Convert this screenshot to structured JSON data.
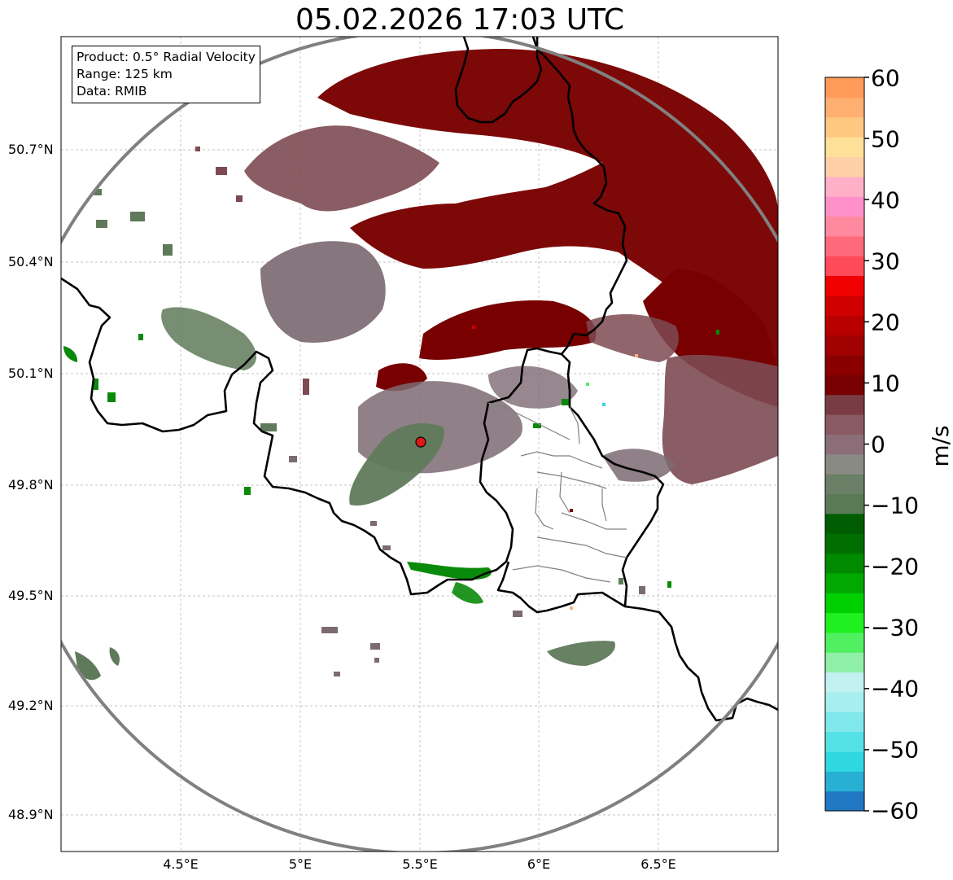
{
  "title": "05.02.2026 17:03 UTC",
  "info": {
    "product": "Product: 0.5° Radial Velocity",
    "range": "Range: 125 km",
    "data": "Data: RMIB"
  },
  "axes": {
    "y_ticks": [
      "50.7°N",
      "50.4°N",
      "50.1°N",
      "49.8°N",
      "49.5°N",
      "49.2°N",
      "48.9°N"
    ],
    "x_ticks": [
      "4.5°E",
      "5°E",
      "5.5°E",
      "6°E",
      "6.5°E"
    ]
  },
  "colorbar": {
    "unit": "m/s",
    "ticks": [
      "60",
      "50",
      "40",
      "30",
      "20",
      "10",
      "0",
      "−10",
      "−20",
      "−30",
      "−40",
      "−50",
      "−60"
    ],
    "min": -60,
    "max": 60,
    "colors": [
      "#1f78c1",
      "#27b0d3",
      "#2fd8e0",
      "#55e2e6",
      "#80e8ea",
      "#a6eef0",
      "#c3f1f2",
      "#90f0a8",
      "#50f060",
      "#20f020",
      "#00d000",
      "#00a800",
      "#008a00",
      "#006e00",
      "#005c00",
      "#5a7a56",
      "#6b8066",
      "#8a8a84",
      "#8c6e78",
      "#8a5a62",
      "#7a3c44",
      "#780000",
      "#8a0000",
      "#a00000",
      "#b80000",
      "#d00000",
      "#f00000",
      "#ff4a5a",
      "#ff6a7a",
      "#ff8aa0",
      "#ff90c8",
      "#ffb0c8",
      "#ffd0a8",
      "#ffe098",
      "#ffc880",
      "#ffb070",
      "#ff9a58"
    ]
  },
  "radar_site": {
    "lon": 5.5,
    "lat": 49.91,
    "marker_color": "#e01818"
  },
  "colors": {
    "outbound_dark": "#780000",
    "outbound_muted": "#7d4a52",
    "near_zero": "#7c6a72",
    "inbound_muted": "#5f7a5a",
    "inbound_green": "#0a8a0a",
    "range_ring": "#808080"
  }
}
